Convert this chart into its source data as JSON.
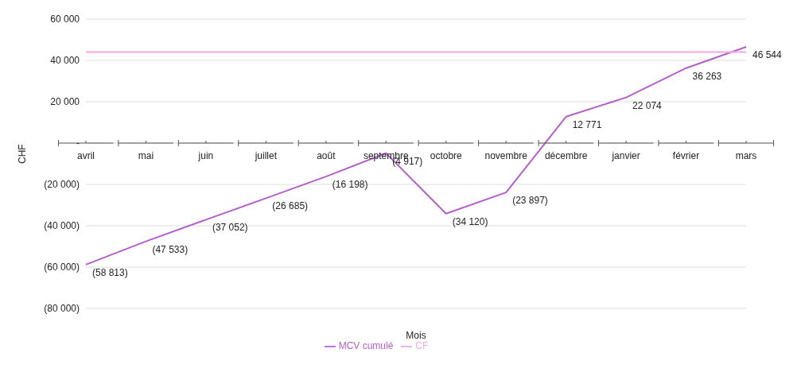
{
  "chart_data": {
    "type": "line",
    "categories": [
      "avril",
      "mai",
      "juin",
      "juillet",
      "août",
      "septembre",
      "octobre",
      "novembre",
      "décembre",
      "janvier",
      "février",
      "mars"
    ],
    "series": [
      {
        "name": "MCV cumulé",
        "color": "#b45fc9",
        "values": [
          -58813,
          -47533,
          -37052,
          -26685,
          -16198,
          -4917,
          -34120,
          -23897,
          12771,
          22074,
          36263,
          46544
        ],
        "value_labels": [
          "(58 813)",
          "(47 533)",
          "(37 052)",
          "(26 685)",
          "(16 198)",
          "(4 917)",
          "(34 120)",
          "(23 897)",
          "12 771",
          "22 074",
          "36 263",
          "46 544"
        ]
      },
      {
        "name": "CF",
        "color": "#f7a8e0",
        "values": [
          44000,
          44000,
          44000,
          44000,
          44000,
          44000,
          44000,
          44000,
          44000,
          44000,
          44000,
          44000
        ]
      }
    ],
    "xlabel": "Mois",
    "ylabel": "CHF",
    "ylim": [
      -80000,
      60000
    ],
    "yticks": [
      {
        "value": -80000,
        "label": "(80 000)"
      },
      {
        "value": -60000,
        "label": "(60 000)"
      },
      {
        "value": -40000,
        "label": "(40 000)"
      },
      {
        "value": -20000,
        "label": "(20 000)"
      },
      {
        "value": 0,
        "label": "-"
      },
      {
        "value": 20000,
        "label": "20 000"
      },
      {
        "value": 40000,
        "label": "40 000"
      },
      {
        "value": 60000,
        "label": "60 000"
      }
    ],
    "grid": "y",
    "legend": "bottom",
    "marker": "none",
    "line_style": "solid"
  }
}
